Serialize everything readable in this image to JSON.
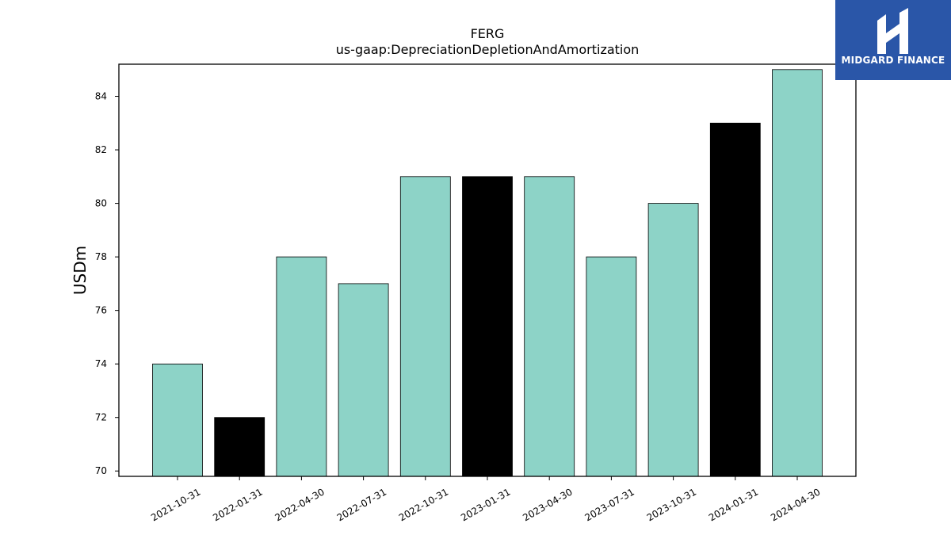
{
  "brand": {
    "name": "MIDGARD FINANCE",
    "bg_color": "#2a56a8",
    "icon": "midgard-logo-icon"
  },
  "chart_data": {
    "type": "bar",
    "title": "FERG",
    "subtitle": "us-gaap:DepreciationDepletionAndAmortization",
    "xlabel": "",
    "ylabel": "USDm",
    "categories": [
      "2021-10-31",
      "2022-01-31",
      "2022-04-30",
      "2022-07-31",
      "2022-10-31",
      "2023-01-31",
      "2023-04-30",
      "2023-07-31",
      "2023-10-31",
      "2024-01-31",
      "2024-04-30"
    ],
    "values": [
      74,
      72,
      78,
      77,
      81,
      81,
      81,
      78,
      80,
      83,
      85
    ],
    "bar_colors": [
      "#8dd3c7",
      "#000000",
      "#8dd3c7",
      "#8dd3c7",
      "#8dd3c7",
      "#000000",
      "#8dd3c7",
      "#8dd3c7",
      "#8dd3c7",
      "#000000",
      "#8dd3c7"
    ],
    "ylim": [
      69.8,
      85.2
    ],
    "yticks": [
      70,
      72,
      74,
      76,
      78,
      80,
      82,
      84
    ],
    "grid": false,
    "legend": "none"
  }
}
